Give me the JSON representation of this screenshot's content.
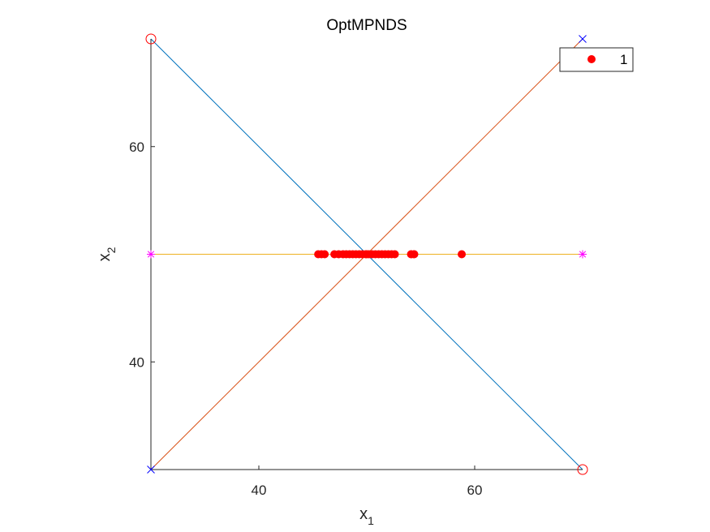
{
  "chart_data": {
    "type": "scatter",
    "title": "OptMPNDS",
    "xlabel": {
      "main": "x",
      "sub": "1"
    },
    "ylabel": {
      "main": "x",
      "sub": "2"
    },
    "xlim": [
      30,
      70
    ],
    "ylim": [
      30,
      70
    ],
    "x_ticks": [
      40,
      60
    ],
    "y_ticks": [
      40,
      60
    ],
    "grid": false,
    "legend": {
      "position": "top-right",
      "entries": [
        "1"
      ]
    },
    "colors": {
      "line_a": "#0072BD",
      "line_b": "#D95319",
      "line_c": "#EDB120",
      "points": "#FF0000",
      "circle_markers": "#FF0000",
      "x_markers": "#0000FF",
      "star_markers": "#FF00FF",
      "axes": "#262626"
    },
    "lines": [
      {
        "x": [
          30,
          70
        ],
        "y": [
          70,
          30
        ],
        "color": "line_a"
      },
      {
        "x": [
          30,
          70
        ],
        "y": [
          30,
          70
        ],
        "color": "line_b"
      },
      {
        "x": [
          30,
          70
        ],
        "y": [
          50,
          50
        ],
        "color": "line_c"
      }
    ],
    "circle_markers": [
      {
        "x": 30,
        "y": 70
      },
      {
        "x": 70,
        "y": 30
      }
    ],
    "x_markers": [
      {
        "x": 30,
        "y": 30
      },
      {
        "x": 70,
        "y": 70
      }
    ],
    "star_markers": [
      {
        "x": 30,
        "y": 50
      },
      {
        "x": 70,
        "y": 50
      }
    ],
    "series": [
      {
        "name": "1",
        "x": [
          45.5,
          45.8,
          46.1,
          47.0,
          47.4,
          47.8,
          48.1,
          48.4,
          48.7,
          49.0,
          49.3,
          49.6,
          49.9,
          50.0,
          50.2,
          50.5,
          50.8,
          51.1,
          51.4,
          51.7,
          52.0,
          52.3,
          52.6,
          54.1,
          54.4,
          58.8
        ],
        "y": [
          50,
          50,
          50,
          50,
          50,
          50,
          50,
          50,
          50,
          50,
          50,
          50,
          50,
          50,
          50,
          50,
          50,
          50,
          50,
          50,
          50,
          50,
          50,
          50,
          50,
          50
        ]
      }
    ]
  }
}
